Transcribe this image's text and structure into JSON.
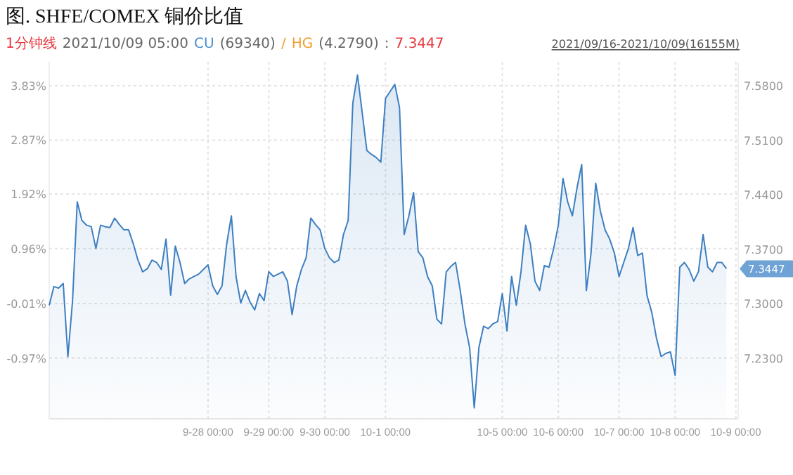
{
  "chart_data": {
    "type": "area",
    "title": "图. SHFE/COMEX 铜价比值",
    "annotations": [
      "1分钟线",
      "2021/10/09 05:00",
      "CU",
      "(69340)",
      "/",
      "HG",
      "(4.2790)",
      ":",
      "7.3447",
      "2021/09/16-2021/10/09(16155M)",
      "7.3447"
    ],
    "categories": [
      null,
      null,
      null,
      null,
      null,
      null,
      null,
      null,
      null,
      null,
      null,
      null,
      null,
      null,
      null,
      null,
      null,
      null,
      null,
      null,
      null,
      null,
      null,
      null,
      null,
      null,
      null,
      null,
      null,
      null,
      null,
      null,
      null,
      null,
      "9-28 00:00",
      null,
      null,
      null,
      null,
      null,
      null,
      null,
      null,
      null,
      null,
      null,
      null,
      "9-29 00:00",
      null,
      null,
      null,
      null,
      null,
      null,
      null,
      null,
      null,
      null,
      null,
      "9-30 00:00",
      null,
      null,
      null,
      null,
      null,
      null,
      null,
      null,
      null,
      null,
      null,
      null,
      "10-1 00:00",
      null,
      null,
      null,
      null,
      null,
      null,
      null,
      null,
      null,
      null,
      null,
      null,
      null,
      null,
      null,
      null,
      null,
      null,
      null,
      null,
      null,
      null,
      null,
      null,
      "10-5 00:00",
      null,
      null,
      null,
      null,
      null,
      null,
      null,
      null,
      null,
      null,
      null,
      "10-6 00:00",
      null,
      null,
      null,
      null,
      null,
      null,
      null,
      null,
      null,
      null,
      null,
      null,
      "10-7 00:00",
      null,
      null,
      null,
      null,
      null,
      null,
      null,
      null,
      null,
      null,
      null,
      "10-8 00:00",
      null,
      null,
      null,
      null,
      null,
      null,
      null,
      null,
      null,
      null,
      null,
      null,
      "10-9 00:00"
    ],
    "series": [
      {
        "color": "#3d7fc1",
        "axis": "y2",
        "values": [
          7.298,
          7.322,
          7.32,
          7.326,
          7.232,
          7.304,
          7.431,
          7.407,
          7.401,
          7.399,
          7.371,
          7.401,
          7.399,
          7.398,
          7.41,
          7.402,
          7.395,
          7.395,
          7.377,
          7.356,
          7.341,
          7.345,
          7.356,
          7.353,
          7.344,
          7.383,
          7.311,
          7.374,
          7.353,
          7.326,
          7.332,
          7.335,
          7.338,
          7.344,
          7.35,
          7.323,
          7.312,
          7.323,
          7.377,
          7.413,
          7.335,
          7.301,
          7.317,
          7.302,
          7.292,
          7.313,
          7.304,
          7.341,
          7.335,
          7.338,
          7.341,
          7.329,
          7.286,
          7.323,
          7.344,
          7.359,
          7.41,
          7.402,
          7.395,
          7.371,
          7.359,
          7.353,
          7.356,
          7.389,
          7.407,
          7.558,
          7.594,
          7.546,
          7.497,
          7.492,
          7.488,
          7.482,
          7.564,
          7.573,
          7.582,
          7.552,
          7.389,
          7.413,
          7.443,
          7.367,
          7.359,
          7.335,
          7.323,
          7.28,
          7.274,
          7.341,
          7.348,
          7.353,
          7.317,
          7.274,
          7.244,
          7.166,
          7.244,
          7.271,
          7.268,
          7.274,
          7.277,
          7.313,
          7.265,
          7.335,
          7.298,
          7.341,
          7.401,
          7.377,
          7.329,
          7.317,
          7.349,
          7.347,
          7.371,
          7.401,
          7.461,
          7.431,
          7.413,
          7.449,
          7.479,
          7.317,
          7.365,
          7.455,
          7.419,
          7.395,
          7.383,
          7.365,
          7.335,
          7.353,
          7.371,
          7.398,
          7.362,
          7.365,
          7.31,
          7.289,
          7.256,
          7.232,
          7.236,
          7.238,
          7.208,
          7.347,
          7.353,
          7.344,
          7.329,
          7.341,
          7.389,
          7.347,
          7.341,
          7.353,
          7.353,
          7.345,
          null,
          null
        ]
      }
    ],
    "ylim": [
      -2.04,
      4.25
    ],
    "yticks": [
      {
        "value": 3.83,
        "label": "3.83%"
      },
      {
        "value": 2.87,
        "label": "2.87%"
      },
      {
        "value": 1.92,
        "label": "1.92%"
      },
      {
        "value": 0.96,
        "label": "0.96%"
      },
      {
        "value": -0.01,
        "label": "-0.01%"
      },
      {
        "value": -0.97,
        "label": "-0.97%"
      }
    ],
    "y2lim": [
      7.152,
      7.611
    ],
    "y2ticks": [
      {
        "value": 7.58,
        "label": "7.5800"
      },
      {
        "value": 7.51,
        "label": "7.5100"
      },
      {
        "value": 7.44,
        "label": "7.4400"
      },
      {
        "value": 7.37,
        "label": "7.3700"
      },
      {
        "value": 7.3,
        "label": "7.3000"
      },
      {
        "value": 7.23,
        "label": "7.2300"
      }
    ],
    "grid": true
  }
}
